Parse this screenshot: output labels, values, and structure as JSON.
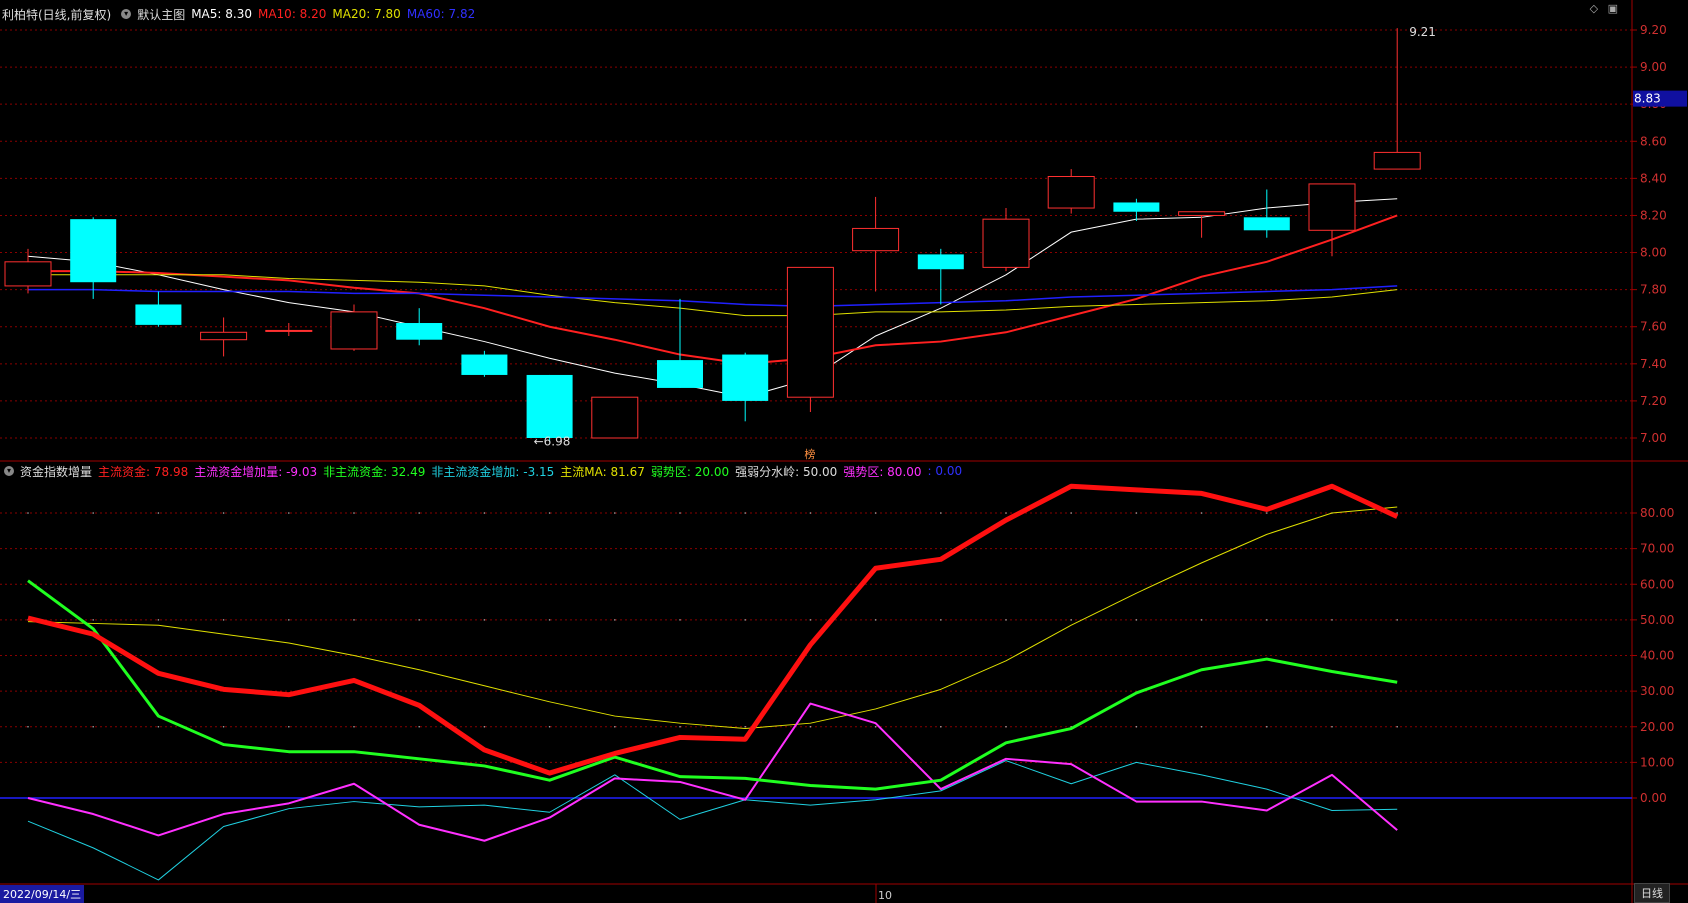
{
  "title_bar": {
    "stock_label": "利柏特(日线,前复权)",
    "main_indicator": "默认主图",
    "ma5": "MA5: 8.30",
    "ma10": "MA10: 8.20",
    "ma20": "MA20: 7.80",
    "ma60": "MA60: 7.82"
  },
  "sub_bar": {
    "indicator_name": "资金指数增量",
    "main_fund": "主流资金: 78.98",
    "main_fund_inc": "主流资金增加量: -9.03",
    "non_main_fund": "非主流资金: 32.49",
    "non_main_inc": "非主流资金增加: -3.15",
    "main_ma": "主流MA: 81.67",
    "weak_zone": "弱势区: 20.00",
    "divide": "强弱分水岭: 50.00",
    "strong_zone": "强势区: 80.00",
    "zero": ": 0.00"
  },
  "colors": {
    "up": "#ff3030",
    "down": "#00ffff",
    "ma5": "#ffffff",
    "ma10": "#ff2020",
    "ma20": "#e0e000",
    "ma60": "#2020ff",
    "main_fund": "#ff1010",
    "main_inc": "#ff30ff",
    "non_main": "#20ff20",
    "non_inc": "#20d0e0",
    "main_ma": "#e0e000",
    "grid": "#8a0000"
  },
  "price_axis": [
    "9.20",
    "9.00",
    "8.80",
    "8.60",
    "8.40",
    "8.20",
    "8.00",
    "7.80",
    "7.60",
    "7.40",
    "7.20",
    "7.00"
  ],
  "current_price": "8.83",
  "sub_axis": [
    "80.00",
    "70.00",
    "60.00",
    "50.00",
    "40.00",
    "30.00",
    "20.00",
    "10.00",
    "0.00"
  ],
  "annotations": {
    "high": "9.21",
    "low": "6.98",
    "marker": "榜"
  },
  "footer": {
    "date": "2022/09/14/三",
    "month": "10",
    "period_button": "日线"
  },
  "chart_data": [
    {
      "type": "candlestick",
      "title": "利柏特(日线,前复权)",
      "ylim": [
        6.9,
        9.25
      ],
      "candles": [
        {
          "o": 7.82,
          "c": 7.95,
          "h": 8.02,
          "l": 7.78
        },
        {
          "o": 8.18,
          "c": 7.84,
          "h": 8.19,
          "l": 7.75
        },
        {
          "o": 7.72,
          "c": 7.61,
          "h": 7.79,
          "l": 7.6
        },
        {
          "o": 7.53,
          "c": 7.57,
          "h": 7.65,
          "l": 7.44
        },
        {
          "o": 7.58,
          "c": 7.58,
          "h": 7.62,
          "l": 7.55
        },
        {
          "o": 7.48,
          "c": 7.68,
          "h": 7.72,
          "l": 7.47
        },
        {
          "o": 7.62,
          "c": 7.53,
          "h": 7.7,
          "l": 7.5
        },
        {
          "o": 7.45,
          "c": 7.34,
          "h": 7.47,
          "l": 7.33
        },
        {
          "o": 7.34,
          "c": 7.0,
          "h": 7.34,
          "l": 6.98
        },
        {
          "o": 7.0,
          "c": 7.22,
          "h": 7.22,
          "l": 7.0
        },
        {
          "o": 7.42,
          "c": 7.27,
          "h": 7.75,
          "l": 7.27
        },
        {
          "o": 7.45,
          "c": 7.2,
          "h": 7.46,
          "l": 7.09
        },
        {
          "o": 7.22,
          "c": 7.92,
          "h": 7.92,
          "l": 7.14
        },
        {
          "o": 8.01,
          "c": 8.13,
          "h": 8.3,
          "l": 7.79
        },
        {
          "o": 7.99,
          "c": 7.91,
          "h": 8.02,
          "l": 7.72
        },
        {
          "o": 7.92,
          "c": 8.18,
          "h": 8.24,
          "l": 7.9
        },
        {
          "o": 8.24,
          "c": 8.41,
          "h": 8.45,
          "l": 8.21
        },
        {
          "o": 8.27,
          "c": 8.22,
          "h": 8.29,
          "l": 8.17
        },
        {
          "o": 8.2,
          "c": 8.22,
          "h": 8.22,
          "l": 8.08
        },
        {
          "o": 8.19,
          "c": 8.12,
          "h": 8.34,
          "l": 8.08
        },
        {
          "o": 8.12,
          "c": 8.37,
          "h": 8.37,
          "l": 7.98
        },
        {
          "o": 8.45,
          "c": 8.54,
          "h": 9.21,
          "l": 8.45
        }
      ],
      "series": [
        {
          "name": "MA5",
          "values": [
            7.98,
            7.95,
            7.88,
            7.8,
            7.73,
            7.68,
            7.6,
            7.52,
            7.43,
            7.35,
            7.29,
            7.22,
            7.32,
            7.55,
            7.7,
            7.88,
            8.11,
            8.18,
            8.19,
            8.24,
            8.27,
            8.29
          ]
        },
        {
          "name": "MA10",
          "values": [
            7.9,
            7.9,
            7.89,
            7.87,
            7.85,
            7.81,
            7.78,
            7.7,
            7.6,
            7.53,
            7.45,
            7.4,
            7.43,
            7.5,
            7.52,
            7.57,
            7.66,
            7.75,
            7.87,
            7.95,
            8.07,
            8.2
          ]
        },
        {
          "name": "MA20",
          "values": [
            7.88,
            7.88,
            7.88,
            7.88,
            7.86,
            7.85,
            7.84,
            7.82,
            7.77,
            7.73,
            7.7,
            7.66,
            7.66,
            7.68,
            7.68,
            7.69,
            7.71,
            7.72,
            7.73,
            7.74,
            7.76,
            7.8
          ]
        },
        {
          "name": "MA60",
          "values": [
            7.8,
            7.8,
            7.79,
            7.79,
            7.79,
            7.78,
            7.78,
            7.77,
            7.76,
            7.75,
            7.74,
            7.72,
            7.71,
            7.72,
            7.73,
            7.74,
            7.76,
            7.77,
            7.78,
            7.79,
            7.8,
            7.82
          ]
        }
      ]
    },
    {
      "type": "line",
      "title": "资金指数增量",
      "ylim": [
        -23,
        93
      ],
      "series": [
        {
          "name": "主流资金",
          "values": [
            50.5,
            46,
            35,
            30.5,
            29,
            33,
            26,
            13.5,
            7,
            12.5,
            17,
            16.5,
            43,
            64.5,
            67,
            78,
            87.5,
            86.5,
            85.5,
            81,
            87.5,
            78.98
          ]
        },
        {
          "name": "主流资金增加量",
          "values": [
            0,
            -4.5,
            -10.5,
            -4.5,
            -1.5,
            4,
            -7.5,
            -12,
            -5.5,
            5.5,
            4.5,
            -0.5,
            26.5,
            21,
            2.5,
            11,
            9.5,
            -1,
            -1,
            -3.5,
            6.5,
            -9.03
          ]
        },
        {
          "name": "非主流资金",
          "values": [
            61,
            47.5,
            23,
            15,
            13,
            13,
            11,
            9,
            5,
            11.5,
            6,
            5.5,
            3.5,
            2.5,
            5,
            15.5,
            19.5,
            29.5,
            36,
            39,
            35.5,
            32.49
          ]
        },
        {
          "name": "非主流资金增加",
          "values": [
            -6.5,
            -14,
            -23,
            -8,
            -3,
            -1,
            -2.5,
            -2,
            -4,
            6.5,
            -6,
            -0.5,
            -2,
            -0.5,
            2,
            10.5,
            4,
            10,
            6.5,
            2.5,
            -3.5,
            -3.15
          ]
        },
        {
          "name": "主流MA",
          "values": [
            49.5,
            49,
            48.5,
            46,
            43.5,
            40,
            36,
            31.5,
            27,
            23,
            21,
            19.5,
            21,
            25,
            30.5,
            38.5,
            48.5,
            57.5,
            66,
            74,
            80,
            81.67
          ]
        }
      ],
      "levels": [
        20,
        50,
        80,
        0
      ]
    }
  ]
}
